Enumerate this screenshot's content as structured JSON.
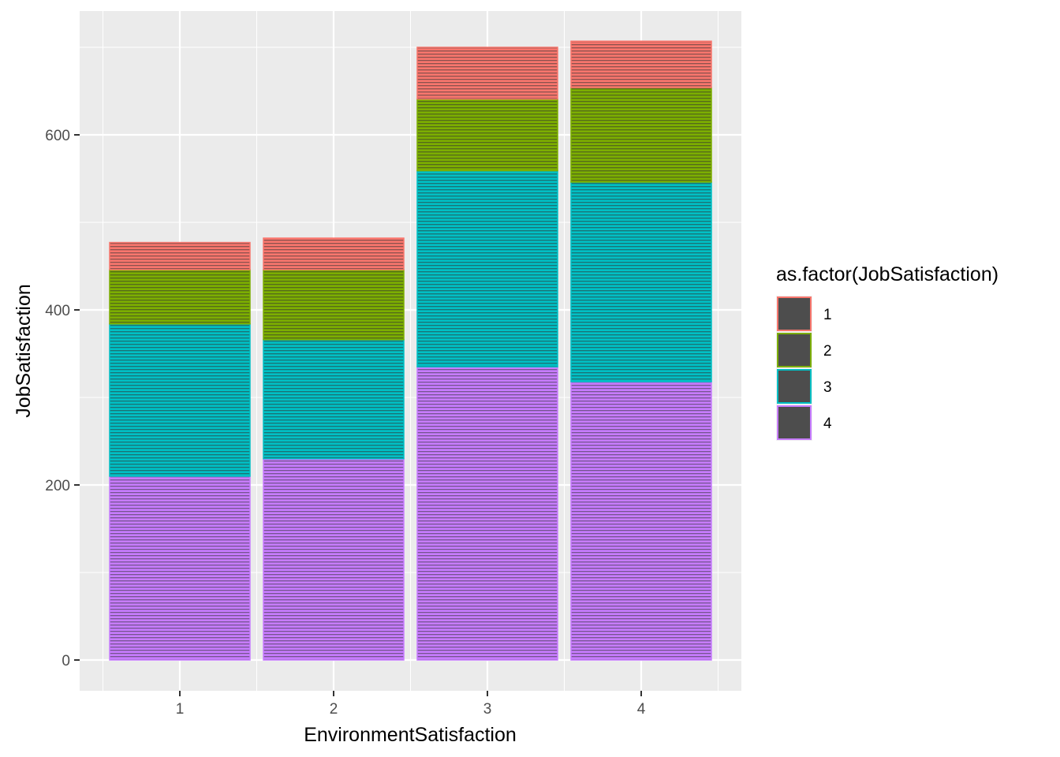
{
  "chart_data": {
    "type": "bar",
    "stacked": true,
    "title": "",
    "xlabel": "EnvironmentSatisfaction",
    "ylabel": "JobSatisfaction",
    "categories": [
      "1",
      "2",
      "3",
      "4"
    ],
    "ylim": [
      -30,
      740
    ],
    "yticks": [
      0,
      200,
      400,
      600
    ],
    "grid": true,
    "legend": {
      "title": "as.factor(JobSatisfaction)",
      "position": "right",
      "entries": [
        "1",
        "2",
        "3",
        "4"
      ]
    },
    "series": [
      {
        "name": "4",
        "color": "#C77CFF",
        "values": [
          210,
          230,
          335,
          318
        ]
      },
      {
        "name": "3",
        "color": "#00BFC4",
        "values": [
          174,
          136,
          224,
          228
        ]
      },
      {
        "name": "2",
        "color": "#7CAE00",
        "values": [
          62,
          80,
          82,
          108
        ]
      },
      {
        "name": "1",
        "color": "#F8766D",
        "values": [
          31,
          36,
          59,
          53
        ]
      }
    ],
    "panel_background": "#EBEBEB",
    "hatch_color": "#333333"
  }
}
